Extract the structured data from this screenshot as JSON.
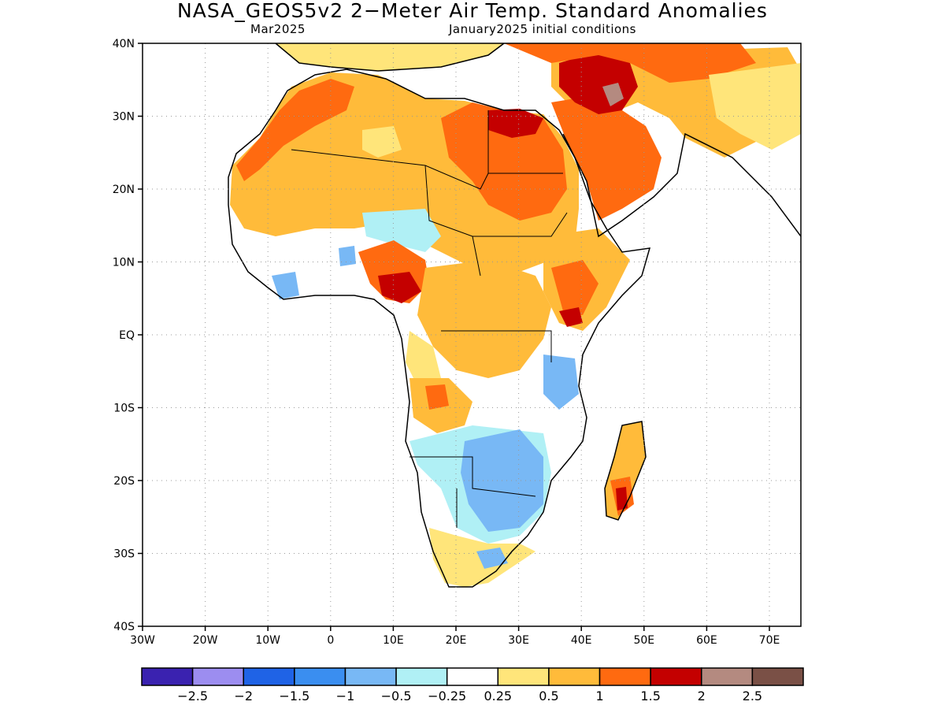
{
  "header": {
    "title": "NASA_GEOS5v2 2−Meter Air Temp. Standard Anomalies",
    "subtitle_left": "Mar2025",
    "subtitle_right": "January2025 initial conditions"
  },
  "map": {
    "lat_labels": [
      "40N",
      "30N",
      "20N",
      "10N",
      "EQ",
      "10S",
      "20S",
      "30S",
      "40S"
    ],
    "lon_labels": [
      "30W",
      "20W",
      "10W",
      "0",
      "10E",
      "20E",
      "30E",
      "40E",
      "50E",
      "60E",
      "70E"
    ]
  },
  "colorbar": {
    "colors": [
      "#3a22b0",
      "#9c8df0",
      "#1f63e6",
      "#3a8ef0",
      "#78b8f5",
      "#b0f0f5",
      "#ffffff",
      "#ffe57a",
      "#ffbb3a",
      "#ff6a10",
      "#c40000",
      "#b48a80",
      "#7a5046"
    ],
    "labels": [
      "−2.5",
      "−2",
      "−1.5",
      "−1",
      "−0.5",
      "−0.25",
      "0.25",
      "0.5",
      "1",
      "1.5",
      "2",
      "2.5"
    ]
  },
  "shading_colors": {
    "anom_0_5": "#ffe57a",
    "anom_1": "#ffbb3a",
    "anom_1_5": "#ff6a10",
    "anom_2": "#c40000",
    "anom_2_5": "#b48a80",
    "anom_neg_0_25": "#b0f0f5",
    "anom_neg_0_5": "#78b8f5",
    "anom_neg_1": "#3a8ef0"
  }
}
